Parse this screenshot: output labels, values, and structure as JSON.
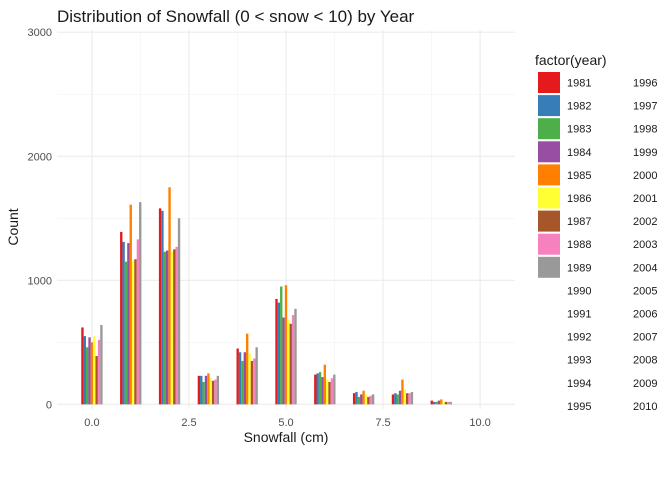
{
  "chart_data": {
    "type": "bar",
    "title": "Distribution of Snowfall (0 < snow < 10) by Year",
    "xlabel": "Snowfall (cm)",
    "ylabel": "Count",
    "x_ticks": [
      "0.0",
      "2.5",
      "5.0",
      "7.5",
      "10.0"
    ],
    "x_tick_values": [
      0,
      2.5,
      5,
      7.5,
      10
    ],
    "y_ticks": [
      "0",
      "1000",
      "2000",
      "3000"
    ],
    "y_tick_values": [
      0,
      1000,
      2000,
      3000
    ],
    "xlim": [
      -0.9,
      10.9
    ],
    "ylim": [
      0,
      3000
    ],
    "grid": true,
    "legend_title": "factor(year)",
    "legend_position": "right",
    "legend_entries": [
      "1981",
      "1982",
      "1983",
      "1984",
      "1985",
      "1986",
      "1987",
      "1988",
      "1989",
      "1990",
      "1991",
      "1992",
      "1993",
      "1994",
      "1995",
      "1996",
      "1997",
      "1998",
      "1999",
      "2000",
      "2001",
      "2002",
      "2003",
      "2004",
      "2005",
      "2006",
      "2007",
      "2008",
      "2009",
      "2010"
    ],
    "legend_colors": [
      "#E41A1C",
      "#377EB8",
      "#4DAF4A",
      "#984EA3",
      "#FF7F00",
      "#FFFF33",
      "#A65628",
      "#F781BF",
      "#999999",
      "#ffffff",
      "#ffffff",
      "#ffffff",
      "#ffffff",
      "#ffffff",
      "#ffffff",
      "#ffffff",
      "#ffffff",
      "#ffffff",
      "#ffffff",
      "#ffffff",
      "#ffffff",
      "#ffffff",
      "#ffffff",
      "#ffffff",
      "#ffffff",
      "#ffffff",
      "#ffffff",
      "#ffffff",
      "#ffffff",
      "#ffffff"
    ],
    "bin_centers": [
      0,
      1,
      2,
      3,
      4,
      5,
      6,
      7,
      8,
      9
    ],
    "series": [
      {
        "name": "1981",
        "values": [
          620,
          1390,
          1580,
          230,
          450,
          850,
          240,
          90,
          80,
          30
        ]
      },
      {
        "name": "1982",
        "values": [
          550,
          1310,
          1560,
          230,
          420,
          820,
          250,
          100,
          90,
          20
        ]
      },
      {
        "name": "1983",
        "values": [
          460,
          1150,
          1230,
          180,
          350,
          950,
          260,
          60,
          80,
          20
        ]
      },
      {
        "name": "1984",
        "values": [
          540,
          1300,
          1240,
          230,
          420,
          700,
          220,
          80,
          110,
          30
        ]
      },
      {
        "name": "1985",
        "values": [
          500,
          1610,
          1750,
          250,
          570,
          960,
          320,
          110,
          200,
          40
        ]
      },
      {
        "name": "1986",
        "values": [
          550,
          1160,
          1230,
          210,
          410,
          680,
          200,
          80,
          120,
          20
        ]
      },
      {
        "name": "1987",
        "values": [
          390,
          1170,
          1250,
          190,
          350,
          650,
          180,
          60,
          90,
          20
        ]
      },
      {
        "name": "1988",
        "values": [
          520,
          1330,
          1270,
          200,
          370,
          720,
          210,
          70,
          90,
          20
        ]
      },
      {
        "name": "1989",
        "values": [
          640,
          1630,
          1500,
          230,
          460,
          770,
          240,
          80,
          100,
          20
        ]
      }
    ]
  }
}
